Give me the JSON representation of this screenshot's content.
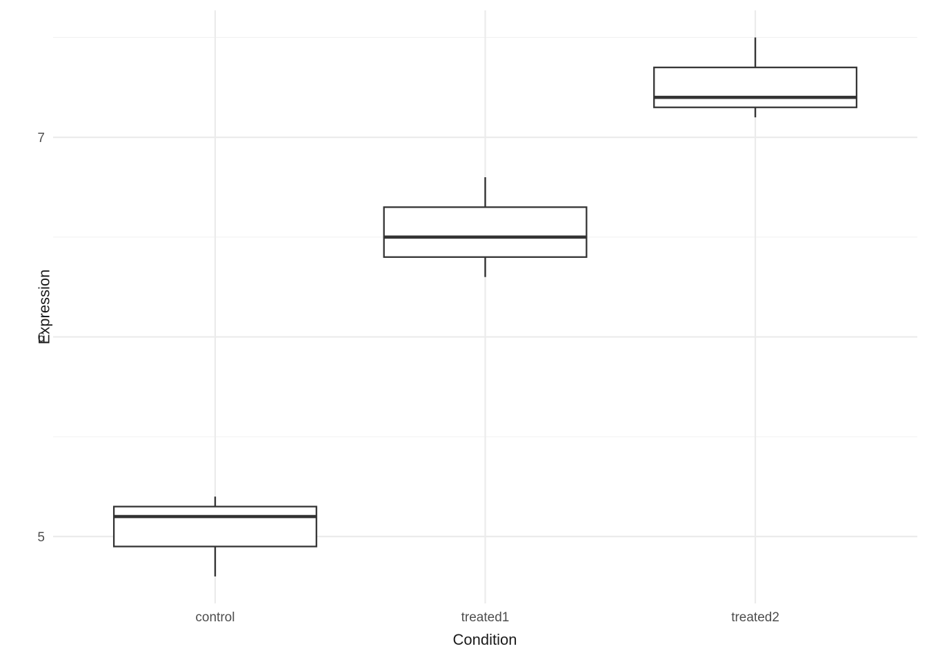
{
  "chart_data": {
    "type": "boxplot",
    "title": "",
    "xlabel": "Condition",
    "ylabel": "Expression",
    "categories": [
      "control",
      "treated1",
      "treated2"
    ],
    "series": [
      {
        "name": "control",
        "min": 4.8,
        "q1": 4.95,
        "median": 5.1,
        "q3": 5.15,
        "max": 5.2
      },
      {
        "name": "treated1",
        "min": 6.3,
        "q1": 6.4,
        "median": 6.5,
        "q3": 6.65,
        "max": 6.8
      },
      {
        "name": "treated2",
        "min": 7.1,
        "q1": 7.15,
        "median": 7.2,
        "q3": 7.35,
        "max": 7.5
      }
    ],
    "y_ticks": [
      5,
      6,
      7
    ],
    "y_minor_ticks": [
      5.5,
      6.5,
      7.5
    ],
    "ylim": [
      4.665,
      7.636
    ],
    "grid": true,
    "legend": false,
    "box_width_fraction": 0.75,
    "style": {
      "background": "#ffffff",
      "box_stroke": "#333333",
      "box_fill": "#ffffff",
      "grid_major_color": "#ebebeb",
      "grid_minor_color": "#f2f2f2",
      "tick_label_color": "#4d4d4d",
      "axis_title_color": "#1a1a1a"
    }
  }
}
